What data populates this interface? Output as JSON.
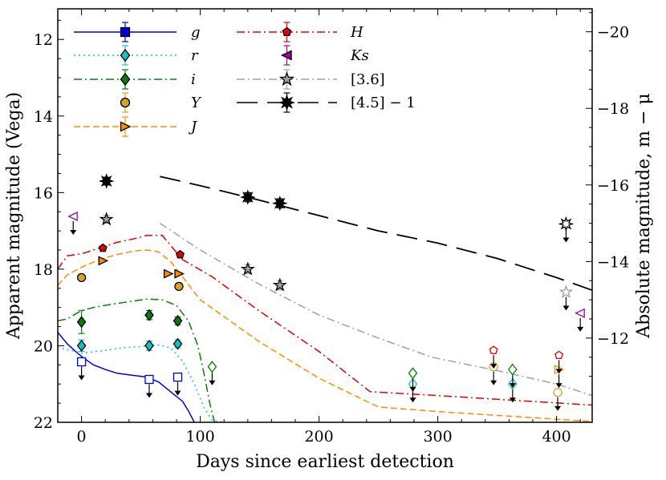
{
  "chart_data": {
    "type": "scatter",
    "xlabel": "Days since earliest detection",
    "ylabel": "Apparent magnitude (Vega)",
    "ylabel_right": "Absolute magnitude, m − μ",
    "xlim": [
      -20,
      430
    ],
    "ylim": [
      22,
      11.2
    ],
    "y_inverted": true,
    "right_axis_offset": 31.8,
    "x_ticks": [
      0,
      100,
      200,
      300,
      400
    ],
    "x_tick_labels": [
      "0",
      "100",
      "200",
      "300",
      "400"
    ],
    "y_ticks": [
      12,
      14,
      16,
      18,
      20,
      22
    ],
    "y_tick_labels": [
      "12",
      "14",
      "16",
      "18",
      "20",
      "22"
    ],
    "y_right_ticks": [
      -20,
      -18,
      -16,
      -14,
      -12
    ],
    "y_right_tick_labels": [
      "−20",
      "−18",
      "−16",
      "−14",
      "−12"
    ],
    "legend": {
      "position": "top-left",
      "columns": 2,
      "entries": [
        "g",
        "r",
        "i",
        "Y",
        "J",
        "H",
        "Ks",
        "[3.6]",
        "[4.5] − 1"
      ]
    },
    "series": [
      {
        "name": "g",
        "label": "g",
        "color": "#0000dd",
        "marker": "square",
        "line": "solid",
        "points": [
          {
            "x": 0,
            "y": 20.42,
            "type": "upper_limit"
          },
          {
            "x": 57,
            "y": 20.88,
            "type": "upper_limit"
          },
          {
            "x": 81,
            "y": 20.82,
            "type": "upper_limit"
          }
        ],
        "model": [
          [
            -20,
            19.65
          ],
          [
            -12,
            19.95
          ],
          [
            -5,
            20.15
          ],
          [
            0,
            20.28
          ],
          [
            10,
            20.5
          ],
          [
            20,
            20.62
          ],
          [
            30,
            20.72
          ],
          [
            40,
            20.76
          ],
          [
            55,
            20.82
          ],
          [
            65,
            20.95
          ],
          [
            75,
            21.2
          ],
          [
            85,
            21.45
          ],
          [
            90,
            21.7
          ],
          [
            95,
            22.0
          ]
        ]
      },
      {
        "name": "r",
        "label": "r",
        "color": "#16c0c0",
        "marker": "diamond",
        "line": "dotted",
        "points": [
          {
            "x": 0,
            "y": 20.0,
            "err": 0.15,
            "type": "detection"
          },
          {
            "x": 57,
            "y": 20.0,
            "err": 0.12,
            "type": "detection"
          },
          {
            "x": 81,
            "y": 19.95,
            "err": 0.1,
            "type": "detection"
          },
          {
            "x": 279,
            "y": 21.0,
            "type": "upper_limit"
          },
          {
            "x": 363,
            "y": 21.0,
            "type": "upper_limit"
          }
        ],
        "model": [
          [
            -20,
            20.05
          ],
          [
            -12,
            20.1
          ],
          [
            -5,
            20.15
          ],
          [
            0,
            20.2
          ],
          [
            20,
            20.12
          ],
          [
            35,
            20.05
          ],
          [
            50,
            20.02
          ],
          [
            65,
            19.98
          ],
          [
            75,
            20.05
          ],
          [
            85,
            20.4
          ],
          [
            95,
            21.0
          ],
          [
            103,
            21.6
          ],
          [
            110,
            21.95
          ],
          [
            120,
            22.0
          ]
        ]
      },
      {
        "name": "i",
        "label": "i",
        "color": "#0c7a0c",
        "marker": "diamond",
        "line": "dashdot",
        "points": [
          {
            "x": 0,
            "y": 19.38,
            "err": 0.3,
            "type": "detection"
          },
          {
            "x": 57,
            "y": 19.2,
            "err": 0.12,
            "type": "detection"
          },
          {
            "x": 81,
            "y": 19.35,
            "err": 0.1,
            "type": "detection"
          },
          {
            "x": 110,
            "y": 20.55,
            "type": "upper_limit"
          },
          {
            "x": 279,
            "y": 20.72,
            "type": "upper_limit"
          },
          {
            "x": 363,
            "y": 20.62,
            "type": "upper_limit"
          }
        ],
        "model": [
          [
            -20,
            19.35
          ],
          [
            -12,
            19.3
          ],
          [
            0,
            19.08
          ],
          [
            10,
            19.0
          ],
          [
            25,
            18.92
          ],
          [
            40,
            18.85
          ],
          [
            55,
            18.78
          ],
          [
            68,
            18.8
          ],
          [
            80,
            18.95
          ],
          [
            90,
            19.35
          ],
          [
            98,
            20.0
          ],
          [
            103,
            20.7
          ],
          [
            108,
            21.5
          ],
          [
            112,
            22.0
          ]
        ]
      },
      {
        "name": "Y",
        "label": "Y",
        "color": "#d8a128",
        "marker": "circle",
        "points": [
          {
            "x": 0,
            "y": 18.22,
            "type": "detection"
          },
          {
            "x": 82,
            "y": 18.45,
            "type": "detection"
          },
          {
            "x": 347,
            "y": 20.55,
            "type": "upper_limit"
          },
          {
            "x": 401,
            "y": 21.22,
            "type": "upper_limit"
          }
        ]
      },
      {
        "name": "J",
        "label": "J",
        "color": "#ff8c00",
        "marker": "triangle-right",
        "line": "dashed",
        "points": [
          {
            "x": 18,
            "y": 17.78,
            "type": "detection"
          },
          {
            "x": 73,
            "y": 18.12,
            "type": "detection"
          },
          {
            "x": 82,
            "y": 18.12,
            "type": "detection"
          },
          {
            "x": 402,
            "y": 20.62,
            "type": "upper_limit"
          }
        ],
        "model": [
          [
            -20,
            18.42
          ],
          [
            -12,
            18.15
          ],
          [
            0,
            17.95
          ],
          [
            15,
            17.75
          ],
          [
            30,
            17.62
          ],
          [
            45,
            17.52
          ],
          [
            55,
            17.5
          ],
          [
            65,
            17.55
          ],
          [
            75,
            17.8
          ],
          [
            85,
            18.2
          ],
          [
            100,
            18.8
          ],
          [
            150,
            19.9
          ],
          [
            200,
            20.85
          ],
          [
            250,
            21.6
          ],
          [
            300,
            21.72
          ],
          [
            350,
            21.82
          ],
          [
            430,
            21.98
          ]
        ]
      },
      {
        "name": "H",
        "label": "H",
        "color": "#e30000",
        "marker": "pentagon",
        "line": "dashdot",
        "points": [
          {
            "x": 18,
            "y": 17.45,
            "type": "detection"
          },
          {
            "x": 83,
            "y": 17.62,
            "type": "detection"
          },
          {
            "x": 347,
            "y": 20.12,
            "type": "upper_limit"
          },
          {
            "x": 402,
            "y": 20.25,
            "type": "upper_limit"
          }
        ],
        "model": [
          [
            -20,
            18.0
          ],
          [
            -12,
            17.65
          ],
          [
            0,
            17.6
          ],
          [
            15,
            17.45
          ],
          [
            30,
            17.3
          ],
          [
            45,
            17.2
          ],
          [
            55,
            17.12
          ],
          [
            68,
            17.12
          ],
          [
            85,
            17.75
          ],
          [
            110,
            18.2
          ],
          [
            150,
            19.1
          ],
          [
            200,
            20.15
          ],
          [
            243,
            21.2
          ],
          [
            300,
            21.3
          ],
          [
            350,
            21.4
          ],
          [
            430,
            21.55
          ]
        ]
      },
      {
        "name": "Ks",
        "label": "K_s",
        "color": "#a000a0",
        "marker": "triangle-left",
        "points": [
          {
            "x": -7,
            "y": 16.62,
            "type": "upper_limit"
          },
          {
            "x": 420,
            "y": 19.15,
            "type": "upper_limit"
          }
        ]
      },
      {
        "name": "[3.6]",
        "label": "[3.6]",
        "color": "#a0a0a0",
        "marker": "star5",
        "line": "dashdot",
        "points": [
          {
            "x": 21,
            "y": 16.7,
            "err": 0.1,
            "type": "detection"
          },
          {
            "x": 140,
            "y": 18.0,
            "err": 0.12,
            "type": "detection"
          },
          {
            "x": 167,
            "y": 18.42,
            "err": 0.12,
            "type": "detection"
          },
          {
            "x": 408,
            "y": 18.6,
            "type": "upper_limit"
          }
        ],
        "model": [
          [
            66,
            16.8
          ],
          [
            100,
            17.5
          ],
          [
            150,
            18.4
          ],
          [
            200,
            19.2
          ],
          [
            250,
            19.8
          ],
          [
            295,
            20.3
          ],
          [
            350,
            20.65
          ],
          [
            400,
            21.0
          ],
          [
            430,
            21.3
          ]
        ]
      },
      {
        "name": "[4.5] - 1",
        "label": "[4.5] − 1",
        "color": "#000000",
        "marker": "star8",
        "line": "longdash",
        "points": [
          {
            "x": 21,
            "y": 15.7,
            "err": 0.1,
            "type": "detection"
          },
          {
            "x": 140,
            "y": 16.12,
            "err": 0.12,
            "type": "detection"
          },
          {
            "x": 167,
            "y": 16.28,
            "err": 0.12,
            "type": "detection"
          },
          {
            "x": 408,
            "y": 16.82,
            "type": "upper_limit"
          }
        ],
        "model": [
          [
            66,
            15.58
          ],
          [
            100,
            15.82
          ],
          [
            150,
            16.2
          ],
          [
            200,
            16.6
          ],
          [
            250,
            17.0
          ],
          [
            300,
            17.32
          ],
          [
            350,
            17.72
          ],
          [
            400,
            18.22
          ],
          [
            430,
            18.55
          ]
        ]
      }
    ]
  }
}
